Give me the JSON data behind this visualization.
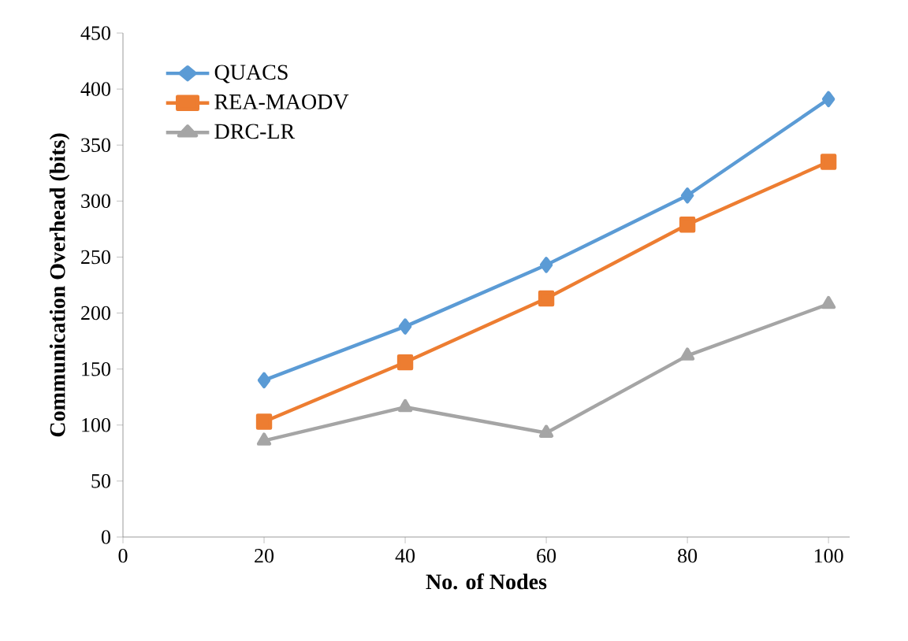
{
  "chart_data": {
    "type": "line",
    "xlabel": "No. of Nodes",
    "ylabel": "Communication Overhead (bits)",
    "x": [
      20,
      40,
      60,
      80,
      100
    ],
    "series": [
      {
        "name": "QUACS",
        "color": "#5b9bd5",
        "marker": "diamond",
        "values": [
          140,
          188,
          243,
          305,
          391
        ]
      },
      {
        "name": "REA-MAODV",
        "color": "#ed7d31",
        "marker": "square",
        "values": [
          103,
          156,
          213,
          279,
          335
        ]
      },
      {
        "name": "DRC-LR",
        "color": "#a5a5a5",
        "marker": "triangle",
        "values": [
          86,
          116,
          93,
          162,
          208
        ]
      }
    ],
    "xlim": [
      0,
      103
    ],
    "xticks": [
      0,
      20,
      40,
      60,
      80,
      100
    ],
    "ylim": [
      0,
      450
    ],
    "yticks": [
      0,
      50,
      100,
      150,
      200,
      250,
      300,
      350,
      400,
      450
    ],
    "grid": false,
    "legend": "top left",
    "line_style": "solid"
  }
}
